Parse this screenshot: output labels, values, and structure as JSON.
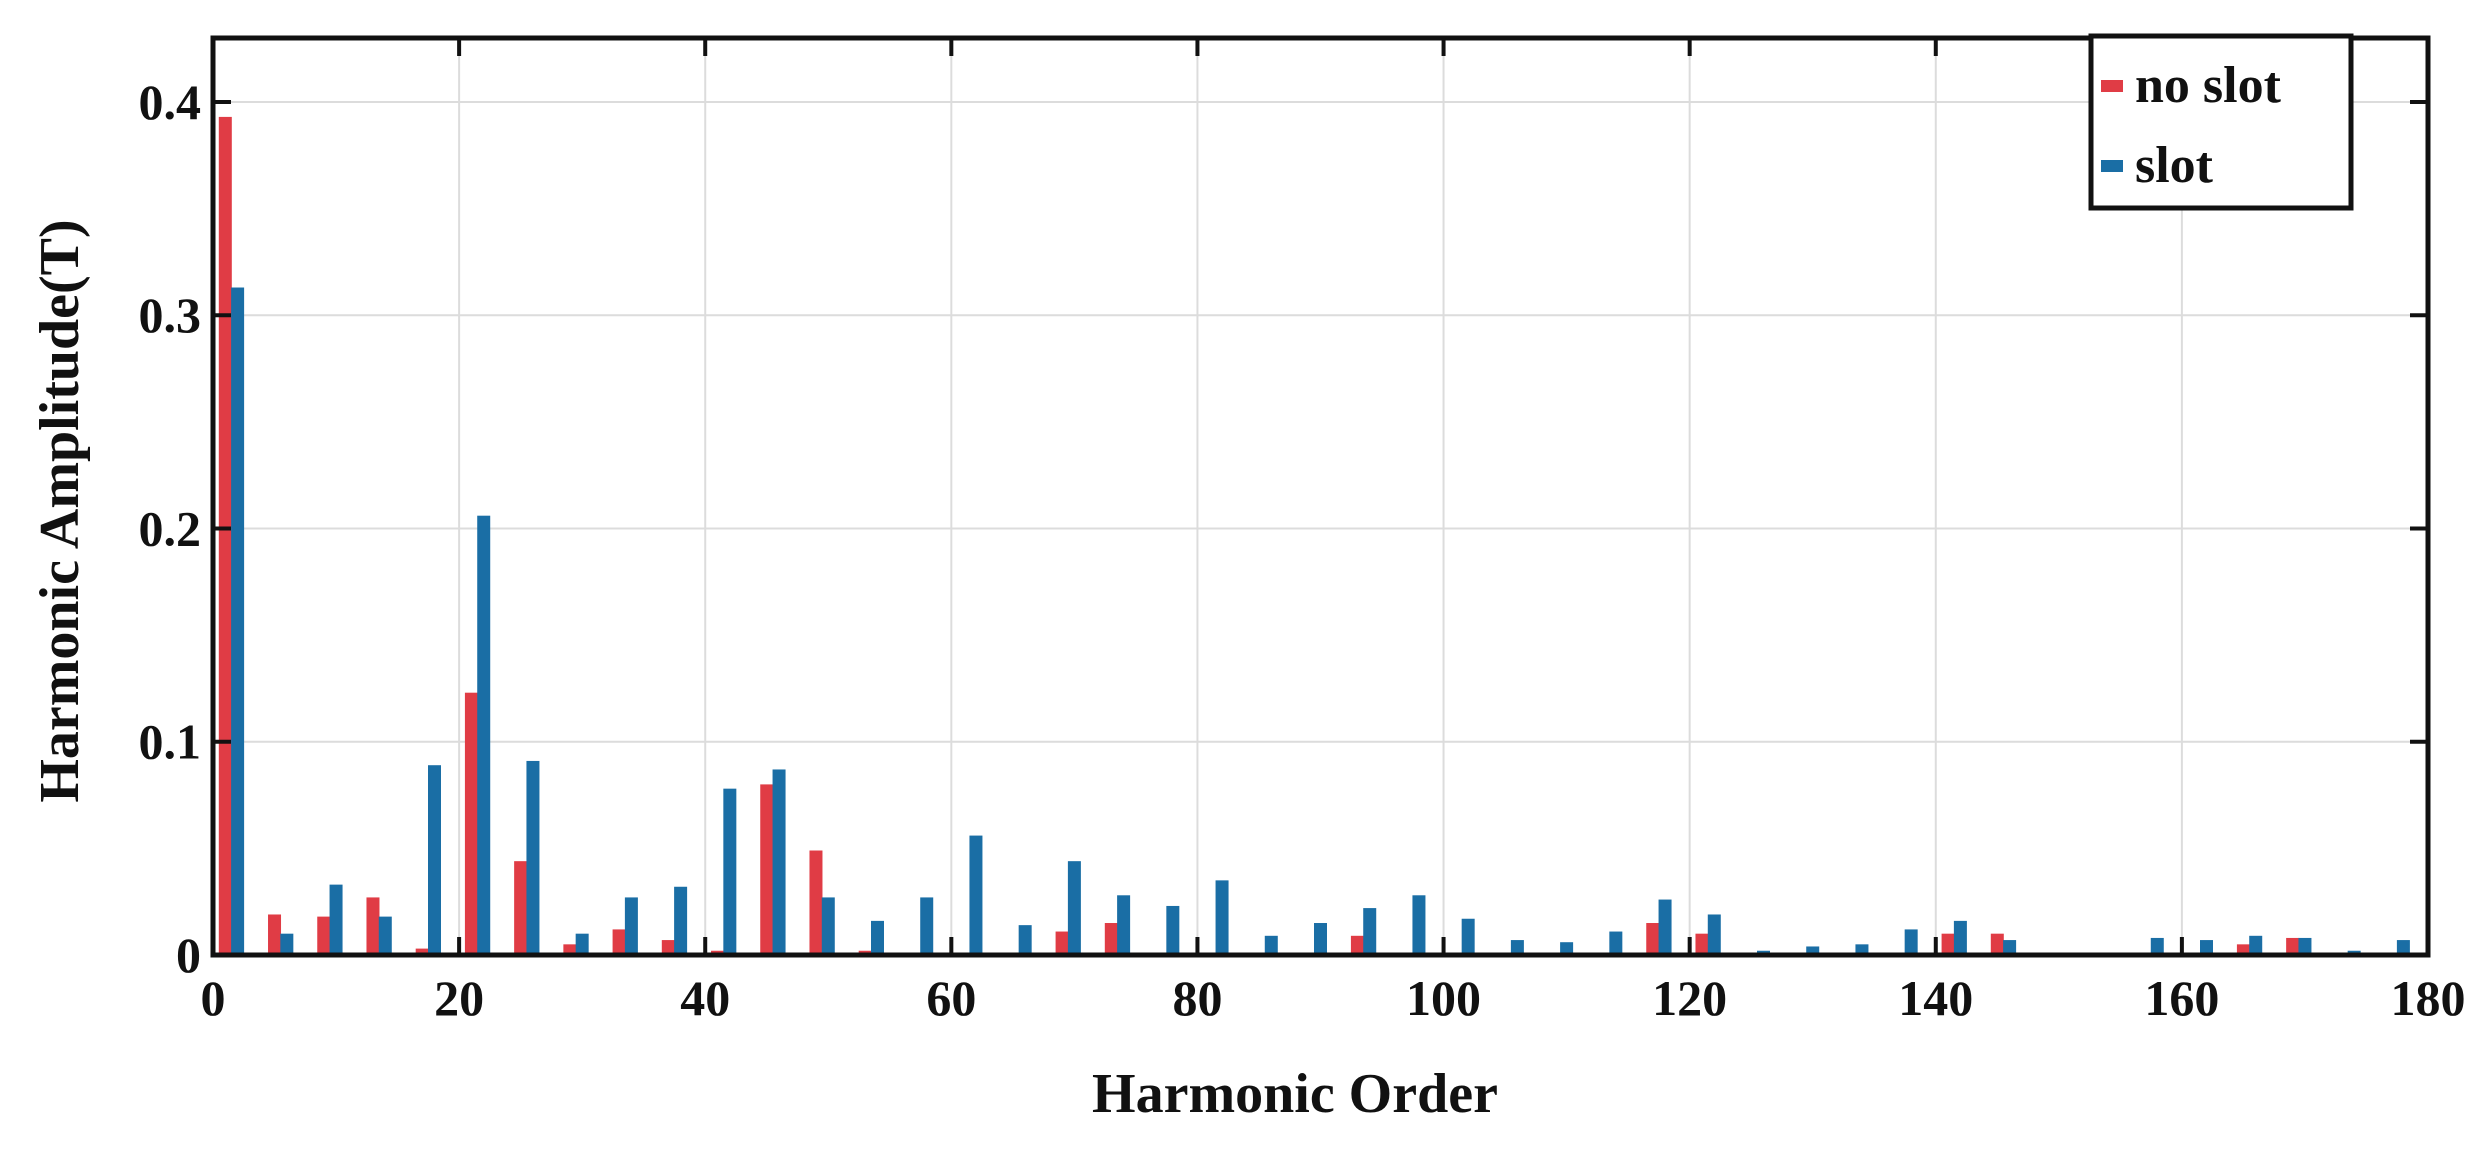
{
  "chart_data": {
    "type": "bar",
    "title": "",
    "xlabel": "Harmonic Order",
    "ylabel": "Harmonic Amplitude(T)",
    "xlim": [
      0,
      180
    ],
    "ylim": [
      0,
      0.43
    ],
    "xticks": [
      0,
      20,
      40,
      60,
      80,
      100,
      120,
      140,
      160,
      180
    ],
    "yticks": [
      0,
      0.1,
      0.2,
      0.3,
      0.4
    ],
    "xtick_labels": [
      "0",
      "20",
      "40",
      "60",
      "80",
      "100",
      "120",
      "140",
      "160",
      "180"
    ],
    "ytick_labels": [
      "0",
      "0.1",
      "0.2",
      "0.3",
      "0.4"
    ],
    "grid": true,
    "legend_position": "top-right",
    "series": [
      {
        "name": "no slot",
        "color": "#e03c45",
        "points": [
          [
            1,
            0.393
          ],
          [
            5,
            0.019
          ],
          [
            9,
            0.018
          ],
          [
            13,
            0.027
          ],
          [
            17,
            0.003
          ],
          [
            21,
            0.123
          ],
          [
            25,
            0.044
          ],
          [
            29,
            0.005
          ],
          [
            33,
            0.012
          ],
          [
            37,
            0.007
          ],
          [
            41,
            0.002
          ],
          [
            45,
            0.08
          ],
          [
            49,
            0.049
          ],
          [
            53,
            0.002
          ],
          [
            69,
            0.011
          ],
          [
            73,
            0.015
          ],
          [
            93,
            0.009
          ],
          [
            97,
            0.001
          ],
          [
            117,
            0.015
          ],
          [
            121,
            0.01
          ],
          [
            141,
            0.01
          ],
          [
            145,
            0.01
          ],
          [
            165,
            0.005
          ],
          [
            169,
            0.008
          ]
        ]
      },
      {
        "name": "slot",
        "color": "#1a6ea5",
        "points": [
          [
            2,
            0.313
          ],
          [
            6,
            0.01
          ],
          [
            10,
            0.033
          ],
          [
            14,
            0.018
          ],
          [
            18,
            0.089
          ],
          [
            22,
            0.206
          ],
          [
            26,
            0.091
          ],
          [
            30,
            0.01
          ],
          [
            34,
            0.027
          ],
          [
            38,
            0.032
          ],
          [
            42,
            0.078
          ],
          [
            46,
            0.087
          ],
          [
            50,
            0.027
          ],
          [
            54,
            0.016
          ],
          [
            58,
            0.027
          ],
          [
            62,
            0.056
          ],
          [
            66,
            0.014
          ],
          [
            70,
            0.044
          ],
          [
            74,
            0.028
          ],
          [
            78,
            0.023
          ],
          [
            82,
            0.035
          ],
          [
            86,
            0.009
          ],
          [
            90,
            0.015
          ],
          [
            94,
            0.022
          ],
          [
            98,
            0.028
          ],
          [
            102,
            0.017
          ],
          [
            106,
            0.007
          ],
          [
            110,
            0.006
          ],
          [
            114,
            0.011
          ],
          [
            118,
            0.026
          ],
          [
            122,
            0.019
          ],
          [
            126,
            0.002
          ],
          [
            130,
            0.004
          ],
          [
            134,
            0.005
          ],
          [
            138,
            0.012
          ],
          [
            142,
            0.016
          ],
          [
            146,
            0.007
          ],
          [
            158,
            0.008
          ],
          [
            162,
            0.007
          ],
          [
            166,
            0.009
          ],
          [
            170,
            0.008
          ],
          [
            174,
            0.002
          ],
          [
            178,
            0.007
          ]
        ]
      }
    ]
  }
}
